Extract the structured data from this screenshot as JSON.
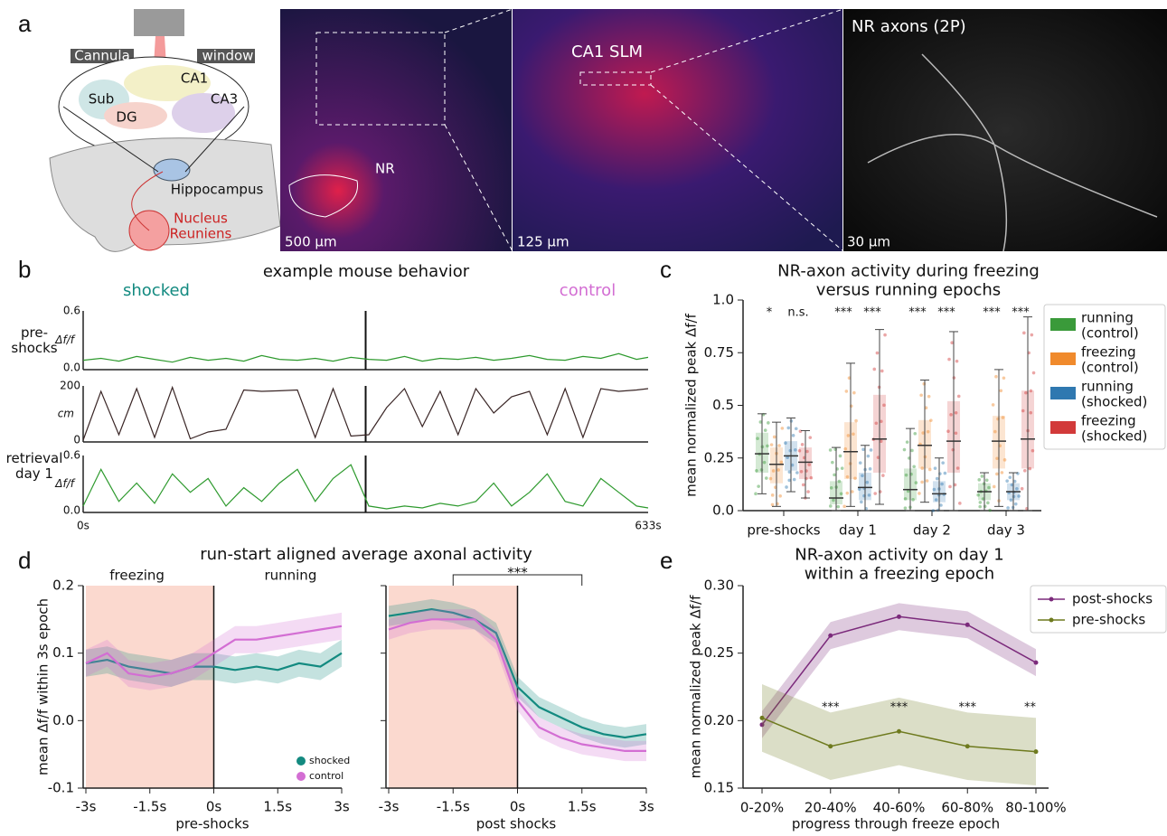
{
  "panel_labels": [
    "a",
    "b",
    "c",
    "d",
    "e"
  ],
  "panel_a": {
    "schematic": [
      "Cannula",
      "window",
      "Sub",
      "CA1",
      "CA3",
      "DG",
      "Hippocampus",
      "Nucleus\nReuniens"
    ],
    "images": [
      {
        "labels": [
          "NR"
        ],
        "scale_bar": "500 µm"
      },
      {
        "labels": [
          "CA1 SLM"
        ],
        "scale_bar": "125 µm"
      },
      {
        "labels": [
          "NR axons (2P)"
        ],
        "scale_bar": "30 µm"
      }
    ]
  },
  "chart_data": [
    {
      "type": "trace",
      "title": "example mouse behavior",
      "groups": [
        "shocked",
        "control"
      ],
      "group_colors": [
        "#138a80",
        "#d36ed3"
      ],
      "xlim": [
        0,
        633
      ],
      "xticks": [
        {
          "value": 0,
          "label": "0s"
        },
        {
          "value": 633,
          "label": "633s"
        }
      ],
      "x": [
        0,
        20,
        40,
        60,
        80,
        100,
        120,
        140,
        160,
        180,
        200,
        220,
        240,
        260,
        280,
        300,
        320,
        340,
        360,
        380,
        400,
        420,
        440,
        460,
        480,
        500,
        520,
        540,
        560,
        580,
        600,
        620,
        633
      ],
      "rows": [
        {
          "label": "pre-\nshocks",
          "ylabel": "Δf/f",
          "ylim": [
            0,
            0.6
          ],
          "yticks": [
            {
              "value": 0,
              "label": "0.0"
            },
            0.6
          ],
          "color": "#2e9a2e",
          "values": [
            0.08,
            0.1,
            0.07,
            0.12,
            0.09,
            0.06,
            0.11,
            0.08,
            0.1,
            0.07,
            0.13,
            0.09,
            0.08,
            0.1,
            0.07,
            0.11,
            0.09,
            0.08,
            0.12,
            0.07,
            0.1,
            0.09,
            0.11,
            0.08,
            0.1,
            0.13,
            0.09,
            0.08,
            0.12,
            0.1,
            0.15,
            0.09,
            0.11
          ]
        },
        {
          "ylabel": "cm",
          "ylim": [
            0,
            200
          ],
          "yticks": [
            0,
            200
          ],
          "color": "#3a2626",
          "values": [
            0,
            180,
            20,
            190,
            10,
            195,
            5,
            30,
            40,
            185,
            180,
            182,
            185,
            10,
            190,
            15,
            20,
            120,
            190,
            50,
            180,
            20,
            190,
            100,
            160,
            180,
            20,
            190,
            10,
            190,
            180,
            185,
            190
          ]
        },
        {
          "label": "retrieval\nday 1",
          "ylabel": "Δf/f",
          "ylim": [
            0,
            0.6
          ],
          "yticks": [
            {
              "value": 0,
              "label": "0.0"
            },
            0.6
          ],
          "color": "#2e9a2e",
          "values": [
            0.05,
            0.45,
            0.1,
            0.3,
            0.08,
            0.4,
            0.2,
            0.35,
            0.05,
            0.25,
            0.1,
            0.3,
            0.45,
            0.1,
            0.35,
            0.5,
            0.05,
            0.02,
            0.05,
            0.03,
            0.08,
            0.05,
            0.1,
            0.3,
            0.05,
            0.2,
            0.4,
            0.1,
            0.05,
            0.35,
            0.2,
            0.05,
            0.03
          ]
        }
      ]
    },
    {
      "type": "box",
      "title": "NR-axon activity during freezing\nversus running epochs",
      "ylabel": "mean  normalized peak Δf/f",
      "categories": [
        "pre-shocks",
        "day 1",
        "day 2",
        "day 3"
      ],
      "ylim": [
        0,
        1
      ],
      "yticks": [
        {
          "value": 0,
          "label": "0.0"
        },
        0.25,
        0.5,
        0.75,
        {
          "value": 1,
          "label": "1.0"
        }
      ],
      "annotations": [
        "*",
        "n.s.",
        "***",
        "***",
        "***",
        "***",
        "***",
        "***"
      ],
      "series": [
        {
          "name": "running\n(control)",
          "color": "#3a9a3a",
          "values": [
            0.27,
            0.06,
            0.1,
            0.09
          ],
          "q1": [
            0.18,
            0.03,
            0.05,
            0.05
          ],
          "q3": [
            0.37,
            0.14,
            0.2,
            0.13
          ],
          "whisker_low": [
            0.08,
            0.0,
            0.0,
            0.0
          ],
          "whisker_high": [
            0.46,
            0.3,
            0.39,
            0.18
          ]
        },
        {
          "name": "freezing\n(control)",
          "color": "#f08a2c",
          "values": [
            0.22,
            0.28,
            0.31,
            0.33
          ],
          "q1": [
            0.13,
            0.15,
            0.2,
            0.2
          ],
          "q3": [
            0.3,
            0.42,
            0.43,
            0.45
          ],
          "whisker_low": [
            0.02,
            0.02,
            0.04,
            0.02
          ],
          "whisker_high": [
            0.42,
            0.7,
            0.62,
            0.67
          ]
        },
        {
          "name": "running\n(shocked)",
          "color": "#2f78b0",
          "values": [
            0.26,
            0.11,
            0.08,
            0.09
          ],
          "q1": [
            0.19,
            0.05,
            0.04,
            0.05
          ],
          "q3": [
            0.33,
            0.18,
            0.14,
            0.13
          ],
          "whisker_low": [
            0.09,
            0.0,
            0.0,
            0.0
          ],
          "whisker_high": [
            0.44,
            0.31,
            0.25,
            0.18
          ]
        },
        {
          "name": "freezing\n(shocked)",
          "color": "#d23a3a",
          "values": [
            0.23,
            0.34,
            0.33,
            0.34
          ],
          "q1": [
            0.15,
            0.18,
            0.18,
            0.2
          ],
          "q3": [
            0.3,
            0.55,
            0.52,
            0.57
          ],
          "whisker_low": [
            0.06,
            0.03,
            0.0,
            0.0
          ],
          "whisker_high": [
            0.38,
            0.86,
            0.85,
            0.92
          ]
        }
      ]
    },
    {
      "type": "band",
      "title": "run-start aligned average axonal activity",
      "ylabel": "mean Δf/f within 3s epoch",
      "xlabel": "pre-shocks",
      "region_labels": [
        "freezing",
        "running"
      ],
      "shaded_x": [
        -3,
        0
      ],
      "shade_color": "#fbd9cf",
      "xlim": [
        -3,
        3
      ],
      "xticks": [
        {
          "value": -3,
          "label": "-3s"
        },
        {
          "value": -1.5,
          "label": "-1.5s"
        },
        {
          "value": 0,
          "label": "0s"
        },
        {
          "value": 1.5,
          "label": "1.5s"
        },
        {
          "value": 3,
          "label": "3s"
        }
      ],
      "ylim": [
        -0.1,
        0.2
      ],
      "yticks": [
        -0.1,
        {
          "value": 0,
          "label": "0.0"
        },
        0.1,
        0.2
      ],
      "x": [
        -3,
        -2.5,
        -2,
        -1.5,
        -1,
        -0.5,
        0,
        0.5,
        1,
        1.5,
        2,
        2.5,
        3
      ],
      "series": [
        {
          "name": "shocked",
          "color": "#138a80",
          "values": [
            0.085,
            0.09,
            0.08,
            0.075,
            0.07,
            0.08,
            0.08,
            0.075,
            0.08,
            0.075,
            0.085,
            0.08,
            0.1
          ],
          "error": [
            0.02,
            0.02,
            0.02,
            0.02,
            0.02,
            0.02,
            0.02,
            0.02,
            0.02,
            0.02,
            0.02,
            0.02,
            0.02
          ]
        },
        {
          "name": "control",
          "color": "#d36ed3",
          "values": [
            0.085,
            0.1,
            0.07,
            0.065,
            0.07,
            0.08,
            0.1,
            0.12,
            0.12,
            0.125,
            0.13,
            0.135,
            0.14
          ],
          "error": [
            0.02,
            0.02,
            0.02,
            0.02,
            0.02,
            0.02,
            0.02,
            0.02,
            0.02,
            0.02,
            0.02,
            0.02,
            0.02
          ]
        }
      ]
    },
    {
      "type": "band",
      "xlabel": "post shocks",
      "shaded_x": [
        -3,
        0
      ],
      "shade_color": "#fbd9cf",
      "annotations": [
        "***"
      ],
      "bracket_x": [
        -1.5,
        1.5
      ],
      "xlim": [
        -3,
        3
      ],
      "xticks": [
        {
          "value": -3,
          "label": "-3s"
        },
        {
          "value": -1.5,
          "label": "-1.5s"
        },
        {
          "value": 0,
          "label": "0s"
        },
        {
          "value": 1.5,
          "label": "1.5s"
        },
        {
          "value": 3,
          "label": "3s"
        }
      ],
      "ylim": [
        -0.1,
        0.2
      ],
      "x": [
        -3,
        -2.5,
        -2,
        -1.5,
        -1,
        -0.5,
        0,
        0.5,
        1,
        1.5,
        2,
        2.5,
        3
      ],
      "series": [
        {
          "color": "#138a80",
          "values": [
            0.155,
            0.16,
            0.165,
            0.16,
            0.15,
            0.13,
            0.05,
            0.02,
            0.005,
            -0.01,
            -0.02,
            -0.025,
            -0.02
          ],
          "error": [
            0.015,
            0.015,
            0.015,
            0.015,
            0.015,
            0.015,
            0.015,
            0.015,
            0.015,
            0.015,
            0.015,
            0.015,
            0.015
          ]
        },
        {
          "color": "#d36ed3",
          "values": [
            0.135,
            0.145,
            0.15,
            0.15,
            0.15,
            0.12,
            0.03,
            -0.01,
            -0.025,
            -0.035,
            -0.04,
            -0.045,
            -0.045
          ],
          "error": [
            0.015,
            0.015,
            0.015,
            0.015,
            0.015,
            0.015,
            0.015,
            0.015,
            0.015,
            0.015,
            0.015,
            0.015,
            0.015
          ]
        }
      ]
    },
    {
      "type": "band",
      "title": "NR-axon activity on day 1\nwithin a freezing epoch",
      "ylabel": "mean  normalized peak Δf/f",
      "xlabel": "progress through freeze epoch",
      "categories": [
        "0-20%",
        "20-40%",
        "40-60%",
        "60-80%",
        "80-100%"
      ],
      "annotations": [
        null,
        "***",
        "***",
        "***",
        "**"
      ],
      "ylim": [
        0.15,
        0.3
      ],
      "yticks": [
        0.15,
        {
          "value": 0.2,
          "label": "0.20"
        },
        0.25,
        {
          "value": 0.3,
          "label": "0.30"
        }
      ],
      "series": [
        {
          "name": "post-shocks",
          "color": "#7b2a7b",
          "values": [
            0.197,
            0.263,
            0.277,
            0.271,
            0.243
          ],
          "error": [
            0.01,
            0.01,
            0.01,
            0.01,
            0.01
          ]
        },
        {
          "name": "pre-shocks",
          "color": "#6e7a1e",
          "values": [
            0.202,
            0.181,
            0.192,
            0.181,
            0.177
          ],
          "error": [
            0.025,
            0.025,
            0.025,
            0.025,
            0.025
          ]
        }
      ]
    }
  ]
}
